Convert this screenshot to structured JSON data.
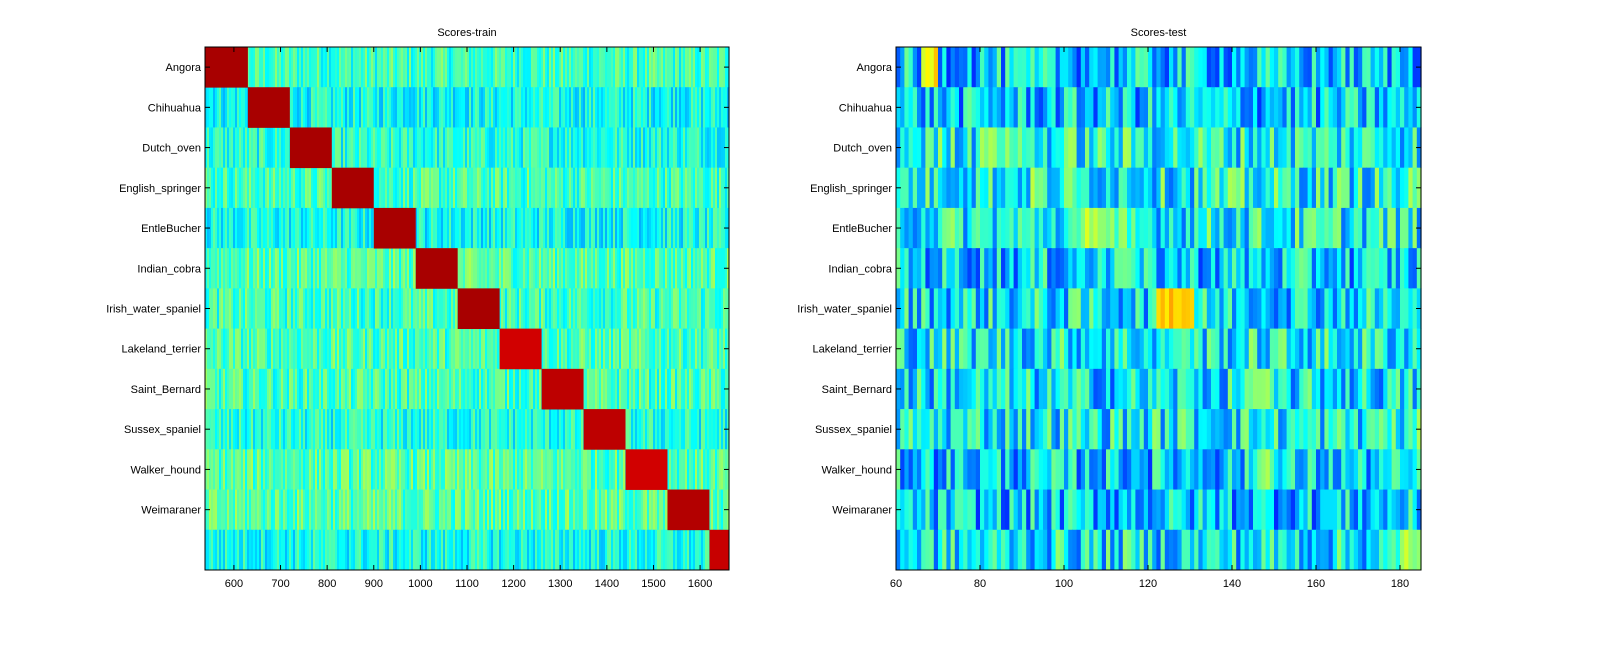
{
  "chart_data": [
    {
      "type": "heatmap",
      "title": "Scores-train",
      "colormap": "jet",
      "grid": false,
      "y_categories": [
        "Angora",
        "Chihuahua",
        "Dutch_oven",
        "English_springer",
        "EntleBucher",
        "Indian_cobra",
        "Irish_water_spaniel",
        "Lakeland_terrier",
        "Saint_Bernard",
        "Sussex_spaniel",
        "Walker_hound",
        "Weimaraner"
      ],
      "row_count": 13,
      "xlim": [
        538,
        1662
      ],
      "x_ticks": [
        600,
        700,
        800,
        900,
        1000,
        1100,
        1200,
        1300,
        1400,
        1500,
        1600
      ],
      "x_tick_labels": [
        "600",
        "700",
        "800",
        "900",
        "1000",
        "1100",
        "1200",
        "1300",
        "1400",
        "1500",
        "1600"
      ],
      "diagonal_blocks": [
        {
          "row": 0,
          "x": [
            538,
            630
          ],
          "level": 0.96
        },
        {
          "row": 1,
          "x": [
            630,
            720
          ],
          "level": 0.96
        },
        {
          "row": 2,
          "x": [
            720,
            810
          ],
          "level": 0.96
        },
        {
          "row": 3,
          "x": [
            810,
            900
          ],
          "level": 0.96
        },
        {
          "row": 4,
          "x": [
            900,
            990
          ],
          "level": 0.96
        },
        {
          "row": 5,
          "x": [
            990,
            1080
          ],
          "level": 0.96
        },
        {
          "row": 6,
          "x": [
            1080,
            1170
          ],
          "level": 0.96
        },
        {
          "row": 7,
          "x": [
            1170,
            1260
          ],
          "level": 0.92
        },
        {
          "row": 8,
          "x": [
            1260,
            1350
          ],
          "level": 0.94
        },
        {
          "row": 9,
          "x": [
            1350,
            1440
          ],
          "level": 0.94
        },
        {
          "row": 10,
          "x": [
            1440,
            1530
          ],
          "level": 0.92
        },
        {
          "row": 11,
          "x": [
            1530,
            1620
          ],
          "level": 0.95
        },
        {
          "row": 12,
          "x": [
            1620,
            1662
          ],
          "level": 0.93
        }
      ],
      "background_level": 0.42
    },
    {
      "type": "heatmap",
      "title": "Scores-test",
      "colormap": "jet",
      "grid": false,
      "y_categories": [
        "Angora",
        "Chihuahua",
        "Dutch_oven",
        "English_springer",
        "EntleBucher",
        "Indian_cobra",
        "Irish_water_spaniel",
        "Lakeland_terrier",
        "Saint_Bernard",
        "Sussex_spaniel",
        "Walker_hound",
        "Weimaraner"
      ],
      "row_count": 13,
      "xlim": [
        60,
        185
      ],
      "x_ticks": [
        60,
        80,
        100,
        120,
        140,
        160,
        180
      ],
      "x_tick_labels": [
        "60",
        "80",
        "100",
        "120",
        "140",
        "160",
        "180"
      ],
      "hotspots": [
        {
          "row": 0,
          "x": [
            66,
            70
          ],
          "level": 0.7
        },
        {
          "row": 2,
          "x": [
            80,
            90
          ],
          "level": 0.55
        },
        {
          "row": 3,
          "x": [
            92,
            96
          ],
          "level": 0.58
        },
        {
          "row": 4,
          "x": [
            104,
            110
          ],
          "level": 0.6
        },
        {
          "row": 5,
          "x": [
            112,
            118
          ],
          "level": 0.5
        },
        {
          "row": 6,
          "x": [
            122,
            131
          ],
          "level": 0.72
        },
        {
          "row": 7,
          "x": [
            126,
            130
          ],
          "level": 0.5
        },
        {
          "row": 8,
          "x": [
            144,
            150
          ],
          "level": 0.58
        },
        {
          "row": 9,
          "x": [
            172,
            176
          ],
          "level": 0.52
        },
        {
          "row": 10,
          "x": [
            146,
            150
          ],
          "level": 0.55
        },
        {
          "row": 12,
          "x": [
            180,
            185
          ],
          "level": 0.6
        }
      ],
      "background_level": 0.36
    }
  ]
}
